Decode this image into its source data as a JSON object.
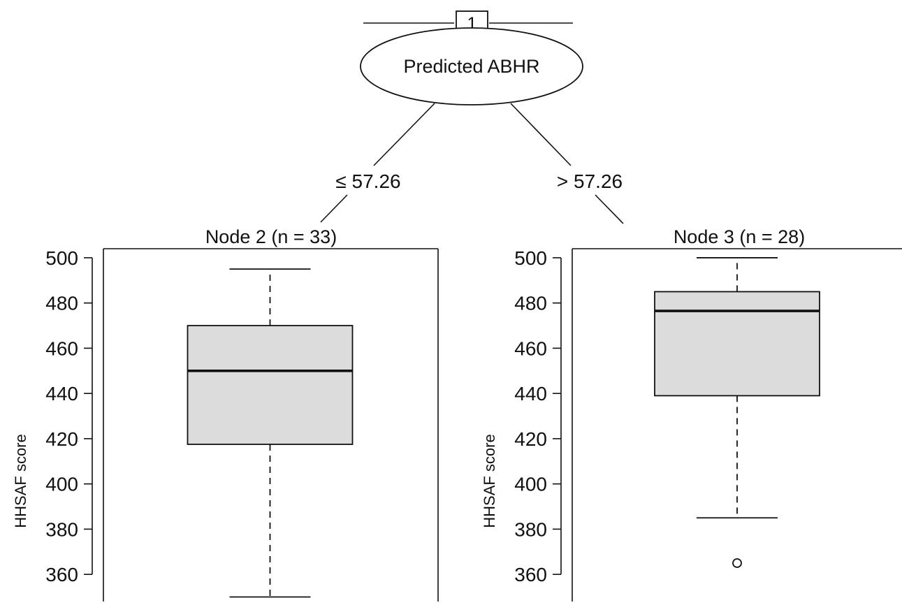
{
  "tree": {
    "root": {
      "id": "1",
      "label": "Predicted ABHR"
    },
    "edges": [
      {
        "label": "≤ 57.26"
      },
      {
        "label": "> 57.26"
      }
    ]
  },
  "chart_data": [
    {
      "type": "box",
      "title": "Node 2 (n = 33)",
      "ylabel": "HHSAF score",
      "ylim": [
        348,
        504
      ],
      "yticks": [
        360,
        380,
        400,
        420,
        440,
        460,
        480,
        500
      ],
      "box": {
        "whisker_low": 350,
        "q1": 417.5,
        "median": 450,
        "q3": 470,
        "whisker_high": 495
      },
      "outliers": []
    },
    {
      "type": "box",
      "title": "Node 3 (n = 28)",
      "ylabel": "HHSAF score",
      "ylim": [
        348,
        504
      ],
      "yticks": [
        360,
        380,
        400,
        420,
        440,
        460,
        480,
        500
      ],
      "box": {
        "whisker_low": 385,
        "q1": 439,
        "median": 476.5,
        "q3": 485,
        "whisker_high": 500
      },
      "outliers": [
        365
      ]
    }
  ],
  "colors": {
    "box_fill": "#dcdcdc",
    "stroke": "#111111"
  }
}
